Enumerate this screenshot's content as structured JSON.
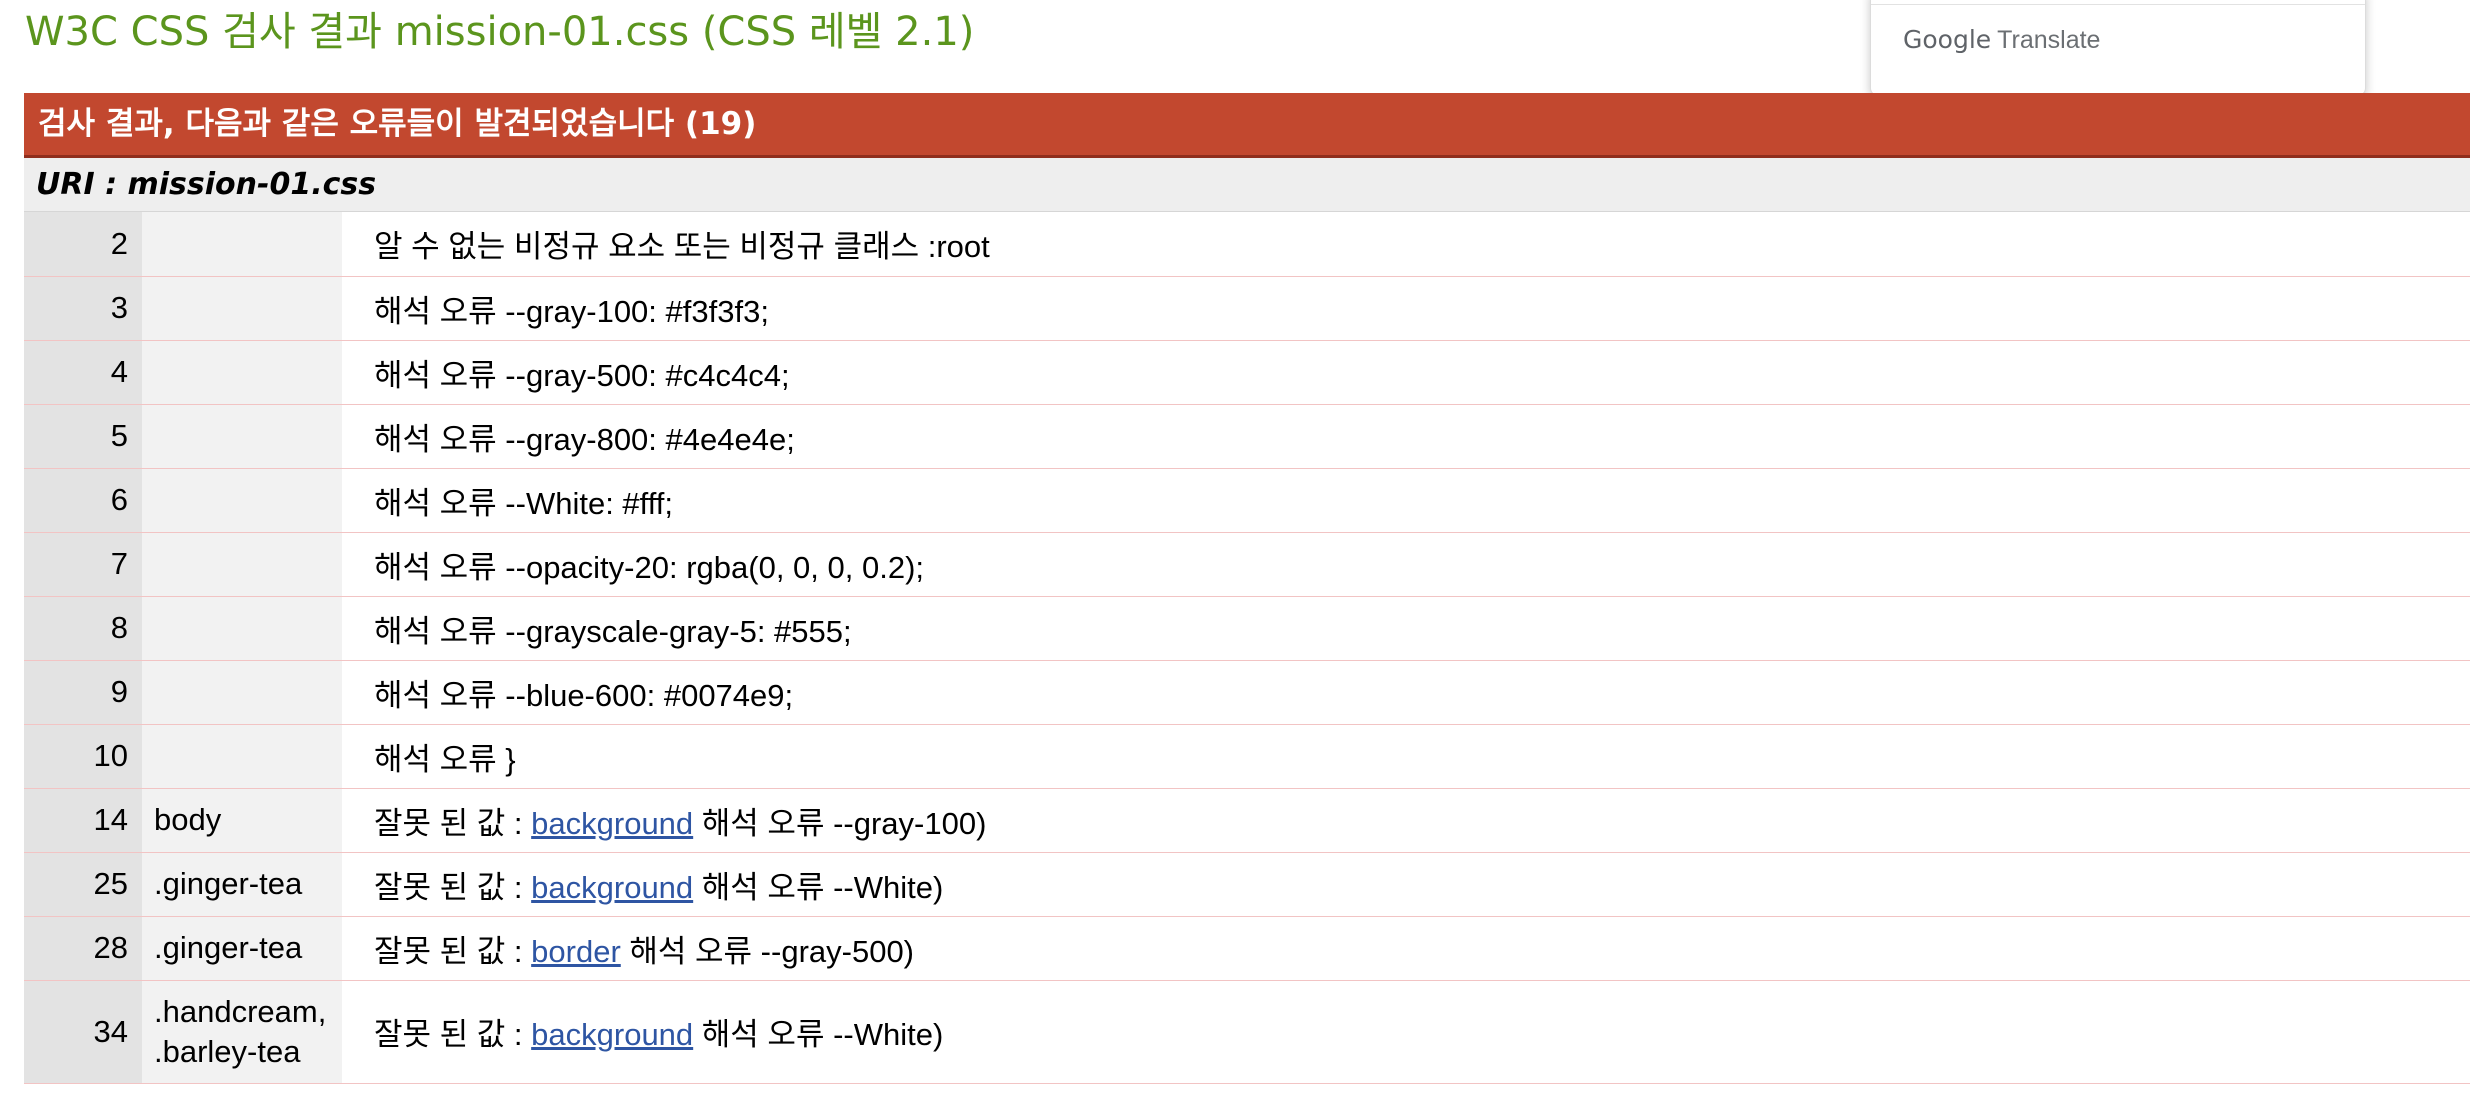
{
  "page": {
    "title": "W3C CSS 검사 결과 mission-01.css (CSS 레벨 2.1)"
  },
  "translate_popup": {
    "brand_google": "Google",
    "brand_translate": "Translate"
  },
  "results": {
    "header": "검사 결과, 다음과 같은 오류들이 발견되었습니다 (19)",
    "uri": "URI : mission-01.css"
  },
  "errors": [
    {
      "line": "2",
      "context": [],
      "message": "알 수 없는 비정규 요소 또는 비정규 클래스 :root",
      "property": "",
      "detail": ""
    },
    {
      "line": "3",
      "context": [],
      "message": "해석 오류 --gray-100: #f3f3f3;",
      "property": "",
      "detail": ""
    },
    {
      "line": "4",
      "context": [],
      "message": "해석 오류 --gray-500: #c4c4c4;",
      "property": "",
      "detail": ""
    },
    {
      "line": "5",
      "context": [],
      "message": "해석 오류 --gray-800: #4e4e4e;",
      "property": "",
      "detail": ""
    },
    {
      "line": "6",
      "context": [],
      "message": "해석 오류 --White: #fff;",
      "property": "",
      "detail": ""
    },
    {
      "line": "7",
      "context": [],
      "message": "해석 오류 --opacity-20: rgba(0, 0, 0, 0.2);",
      "property": "",
      "detail": ""
    },
    {
      "line": "8",
      "context": [],
      "message": "해석 오류 --grayscale-gray-5: #555;",
      "property": "",
      "detail": ""
    },
    {
      "line": "9",
      "context": [],
      "message": "해석 오류 --blue-600: #0074e9;",
      "property": "",
      "detail": ""
    },
    {
      "line": "10",
      "context": [],
      "message": "해석 오류 }",
      "property": "",
      "detail": ""
    },
    {
      "line": "14",
      "context": [
        "body"
      ],
      "message": "잘못 된 값 : ",
      "property": "background",
      "detail": " 해석 오류 --gray-100)"
    },
    {
      "line": "25",
      "context": [
        ".ginger-tea"
      ],
      "message": "잘못 된 값 : ",
      "property": "background",
      "detail": " 해석 오류 --White)"
    },
    {
      "line": "28",
      "context": [
        ".ginger-tea"
      ],
      "message": "잘못 된 값 : ",
      "property": "border",
      "detail": " 해석 오류 --gray-500)"
    },
    {
      "line": "34",
      "context": [
        ".handcream,",
        ".barley-tea"
      ],
      "message": "잘못 된 값 : ",
      "property": "background",
      "detail": " 해석 오류 --White)"
    }
  ],
  "colors": {
    "title_green": "#5b951d",
    "header_red": "#c2482f",
    "link_blue": "#2e55a3"
  }
}
